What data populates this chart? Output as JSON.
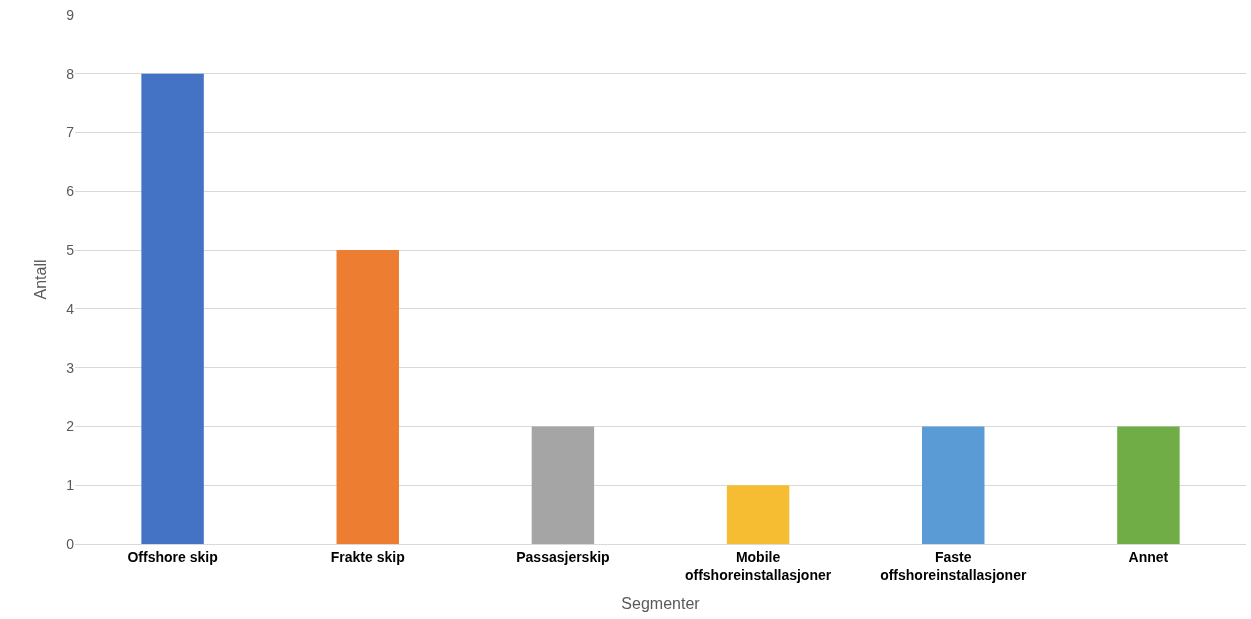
{
  "chart_data": {
    "type": "bar",
    "xlabel": "Segmenter",
    "ylabel": "Antall",
    "categories": [
      "Offshore skip",
      "Frakte skip",
      "Passasjerskip",
      "Mobile offshoreinstallasjoner",
      "Faste offshoreinstallasjoner",
      "Annet"
    ],
    "values": [
      8,
      5,
      2,
      1,
      2,
      2
    ],
    "colors": [
      "#4472c4",
      "#ed7d31",
      "#a5a5a5",
      "#f6bc32",
      "#5b9bd5",
      "#70ad47"
    ],
    "ylim": [
      0,
      9
    ],
    "yticks": [
      0,
      1,
      2,
      3,
      4,
      5,
      6,
      7,
      8,
      9
    ],
    "grid": "y"
  }
}
